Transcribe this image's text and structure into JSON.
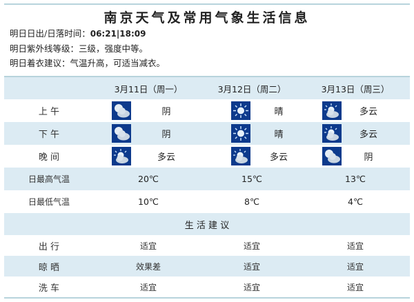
{
  "title": "南京天气及常用气象生活信息",
  "info": {
    "sun_label": "明日日出/日落时间：",
    "sun_value": "06:21|18:09",
    "uv": "明日紫外线等级：三级，强度中等。",
    "dress": "明日着衣建议：气温升高，可适当减衣。"
  },
  "days": [
    {
      "date": "3月11日（周一）",
      "morning": {
        "icon": "cloudy-icon",
        "text": "阴"
      },
      "afternoon": {
        "icon": "cloudy-icon",
        "text": "阴"
      },
      "evening": {
        "icon": "partly-cloudy-icon",
        "text": "多云"
      },
      "high": "20℃",
      "low": "10℃",
      "travel": "适宜",
      "drying": "效果差",
      "carwash": "适宜"
    },
    {
      "date": "3月12日（周二）",
      "morning": {
        "icon": "sunny-icon",
        "text": "晴"
      },
      "afternoon": {
        "icon": "sunny-icon",
        "text": "晴"
      },
      "evening": {
        "icon": "partly-cloudy-icon",
        "text": "多云"
      },
      "high": "15℃",
      "low": "8℃",
      "travel": "适宜",
      "drying": "适宜",
      "carwash": "适宜"
    },
    {
      "date": "3月13日（周三）",
      "morning": {
        "icon": "partly-cloudy-icon",
        "text": "多云"
      },
      "afternoon": {
        "icon": "partly-cloudy-icon",
        "text": "多云"
      },
      "evening": {
        "icon": "cloudy-icon",
        "text": "阴"
      },
      "high": "13℃",
      "low": "4℃",
      "travel": "适宜",
      "drying": "适宜",
      "carwash": "适宜"
    }
  ],
  "labels": {
    "morning": "上 午",
    "afternoon": "下 午",
    "evening": "晚 间",
    "high": "日最高气温",
    "low": "日最低气温",
    "advice": "生 活 建 议",
    "travel": "出 行",
    "drying": "晾 晒",
    "carwash": "洗 车"
  },
  "colors": {
    "header_bg": "#dcebf3",
    "icon_bg": "#0d3a8c",
    "border": "#b7d3dc"
  }
}
